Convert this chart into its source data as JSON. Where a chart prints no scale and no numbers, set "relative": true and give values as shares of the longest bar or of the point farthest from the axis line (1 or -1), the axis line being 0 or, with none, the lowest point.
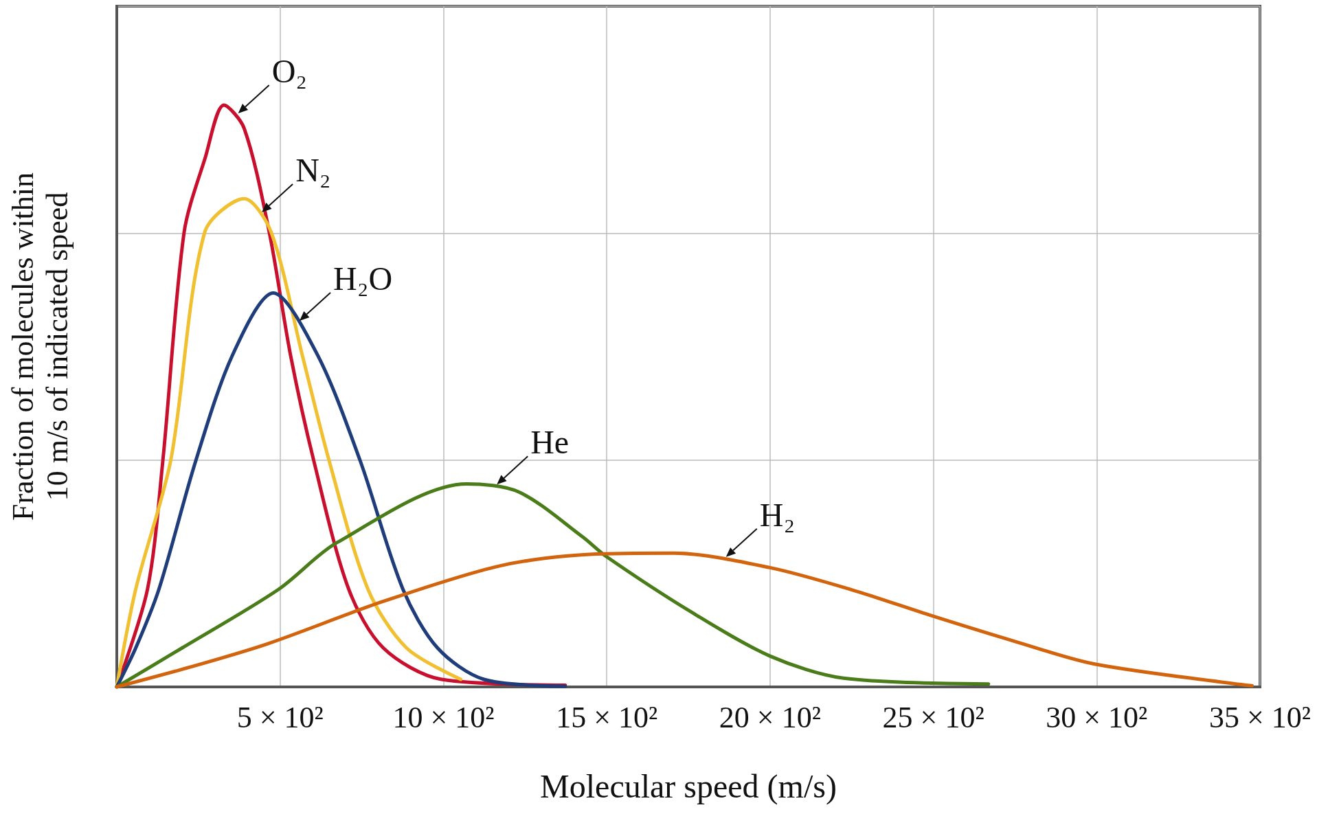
{
  "chart_data": {
    "type": "line",
    "xlabel": "Molecular speed (m/s)",
    "ylabel": "Fraction of molecules within\n10 m/s of indicated speed",
    "relative": true,
    "grid": true,
    "xlim": [
      0,
      3500
    ],
    "xticks": [
      {
        "value": 500,
        "label": "5 × 10²"
      },
      {
        "value": 1000,
        "label": "10 × 10²"
      },
      {
        "value": 1500,
        "label": "15 × 10²"
      },
      {
        "value": 2000,
        "label": "20 × 10²"
      },
      {
        "value": 2500,
        "label": "25 × 10²"
      },
      {
        "value": 3000,
        "label": "30 × 10²"
      },
      {
        "value": 3500,
        "label": "35 × 10²"
      }
    ],
    "series": [
      {
        "name": "O₂",
        "color": "#c8102e",
        "x": [
          0,
          94,
          141,
          206,
          271,
          328,
          390,
          467,
          532,
          603,
          710,
          816,
          994,
          1373
        ],
        "values": [
          0,
          0.168,
          0.389,
          0.781,
          0.91,
          1,
          0.96,
          0.781,
          0.57,
          0.389,
          0.168,
          0.067,
          0.013,
          0.003
        ]
      },
      {
        "name": "N₂",
        "color": "#f0c030",
        "x": [
          0,
          58,
          165,
          269,
          390,
          473,
          568,
          650,
          769,
          887,
          1053
        ],
        "values": [
          0,
          0.168,
          0.389,
          0.781,
          0.839,
          0.781,
          0.57,
          0.389,
          0.168,
          0.067,
          0.013
        ]
      },
      {
        "name": "H₂O",
        "color": "#1f3d7a",
        "x": [
          0,
          58,
          129,
          242,
          354,
          479,
          615,
          745,
          876,
          982,
          1124,
          1373
        ],
        "values": [
          0,
          0.067,
          0.168,
          0.389,
          0.57,
          0.677,
          0.57,
          0.389,
          0.168,
          0.067,
          0.013,
          0.001
        ]
      },
      {
        "name": "He",
        "color": "#4a7d1a",
        "x": [
          0,
          200,
          496,
          674,
          1071,
          1231,
          1426,
          1499,
          1758,
          2000,
          2225,
          2669
        ],
        "values": [
          0,
          0.067,
          0.168,
          0.248,
          0.349,
          0.335,
          0.258,
          0.224,
          0.129,
          0.053,
          0.015,
          0.005
        ]
      },
      {
        "name": "H₂",
        "color": "#d2640e",
        "x": [
          0,
          224,
          461,
          816,
          1172,
          1448,
          1705,
          2000,
          2250,
          2497,
          2757,
          2997,
          3476
        ],
        "values": [
          0,
          0.034,
          0.074,
          0.147,
          0.208,
          0.228,
          0.23,
          0.205,
          0.167,
          0.122,
          0.077,
          0.039,
          0.002
        ]
      }
    ]
  }
}
